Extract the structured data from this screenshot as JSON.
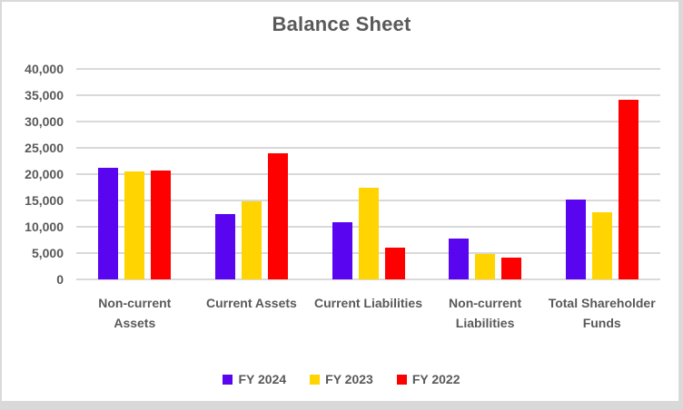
{
  "window": {
    "background": "#ffffff",
    "frame_color": "#d9d9d9"
  },
  "chart_data": {
    "type": "bar",
    "title": "Balance Sheet",
    "title_color": "#595959",
    "text_color": "#595959",
    "gridline_color": "#d9d9d9",
    "grid": true,
    "legend_position": "bottom",
    "categories": [
      "Non-current Assets",
      "Current Assets",
      "Current Liabilities",
      "Non-current Liabilities",
      "Total Shareholder Funds"
    ],
    "series": [
      {
        "name": "FY 2024",
        "color": "#5a05f0",
        "values": [
          21200,
          12500,
          10900,
          7800,
          15100
        ]
      },
      {
        "name": "FY 2023",
        "color": "#ffd400",
        "values": [
          20500,
          14900,
          17500,
          4900,
          12800
        ]
      },
      {
        "name": "FY 2022",
        "color": "#ff0000",
        "values": [
          20700,
          24000,
          6000,
          4200,
          34200
        ]
      }
    ],
    "ylim": [
      0,
      40000
    ],
    "ytick_step": 5000,
    "ytick_labels": [
      "0",
      "5,000",
      "10,000",
      "15,000",
      "20,000",
      "25,000",
      "30,000",
      "35,000",
      "40,000"
    ]
  }
}
